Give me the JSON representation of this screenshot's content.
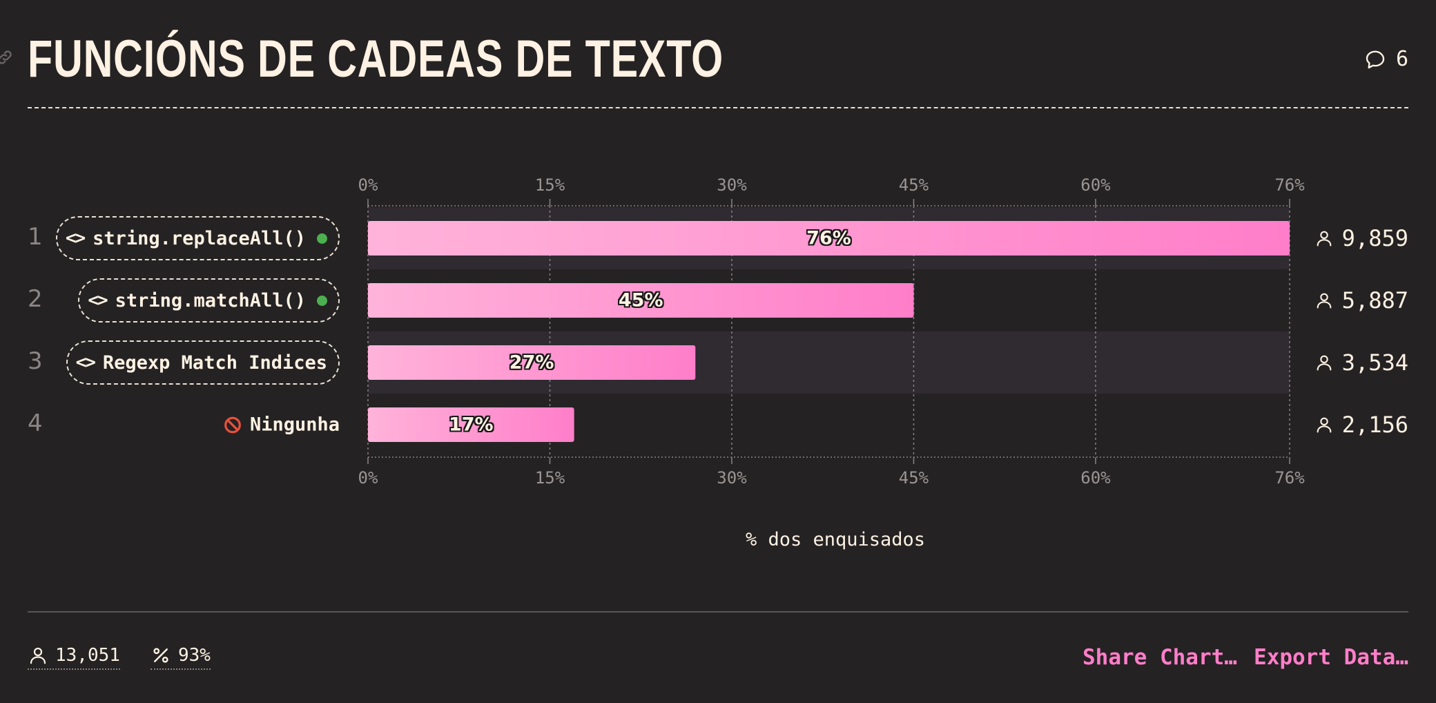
{
  "title": "FUNCIÓNS DE CADEAS DE TEXTO",
  "comments_count": "6",
  "footer": {
    "respondents": "13,051",
    "percent": "93%",
    "share_label": "Share Chart…",
    "export_label": "Export Data…"
  },
  "colors": {
    "background": "#252223",
    "bar_start": "#ffb3da",
    "bar_end": "#ff7ec9",
    "accent": "#ff7ec9",
    "dot": "#4caf50",
    "row_highlight": "#302a31"
  },
  "chart_data": {
    "type": "bar",
    "orientation": "horizontal",
    "xlabel": "% dos enquisados",
    "x_ticks": [
      "0%",
      "15%",
      "30%",
      "45%",
      "60%",
      "76%"
    ],
    "x_tick_values": [
      0,
      15,
      30,
      45,
      60,
      76
    ],
    "xlim": [
      0,
      76
    ],
    "grid": true,
    "items": [
      {
        "rank": "1",
        "label": "string.replaceAll()",
        "icon": "code-icon",
        "status_dot": true,
        "value": 76,
        "value_label": "76%",
        "count": "9,859"
      },
      {
        "rank": "2",
        "label": "string.matchAll()",
        "icon": "code-icon",
        "status_dot": true,
        "value": 45,
        "value_label": "45%",
        "count": "5,887"
      },
      {
        "rank": "3",
        "label": "Regexp Match Indices",
        "icon": "code-icon",
        "status_dot": false,
        "value": 27,
        "value_label": "27%",
        "count": "3,534"
      },
      {
        "rank": "4",
        "label": "Ningunha",
        "icon": "no-entry-icon",
        "status_dot": false,
        "value": 17,
        "value_label": "17%",
        "count": "2,156"
      }
    ]
  }
}
